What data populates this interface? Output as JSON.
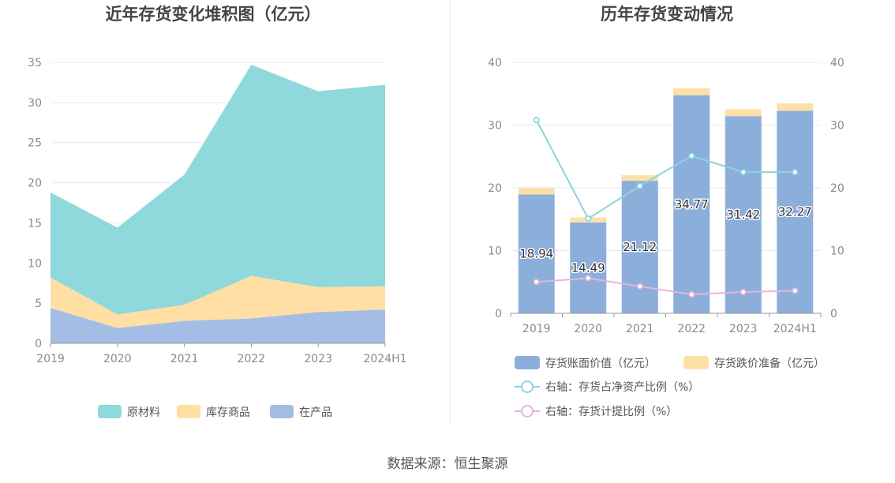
{
  "source_label": "数据来源：恒生聚源",
  "colors": {
    "raw": "#8fd8db",
    "finished": "#ffdfa3",
    "wip": "#a4bde4",
    "book": "#8caedb",
    "writedown": "#fde0a6",
    "line_ratio": "#8dd3dc",
    "line_provision": "#e3b6da",
    "grid": "#e6e9f0",
    "axis": "#999999",
    "divider": "#e8e8e8"
  },
  "chart_data": [
    {
      "type": "area",
      "stacked": true,
      "title": "近年存货变化堆积图（亿元）",
      "categories": [
        "2019",
        "2020",
        "2021",
        "2022",
        "2023",
        "2024H1"
      ],
      "ylim": [
        0,
        35
      ],
      "yticks": [
        0,
        5,
        10,
        15,
        20,
        25,
        30,
        35
      ],
      "grid": true,
      "legend_position": "bottom",
      "series": [
        {
          "name": "在产品",
          "key": "wip",
          "values": [
            4.4,
            1.9,
            2.8,
            3.1,
            3.9,
            4.2
          ]
        },
        {
          "name": "库存商品",
          "key": "finished",
          "values": [
            3.8,
            1.7,
            2.0,
            5.3,
            3.1,
            2.9
          ]
        },
        {
          "name": "原材料",
          "key": "raw",
          "values": [
            10.6,
            10.8,
            16.2,
            26.3,
            24.4,
            25.1
          ]
        }
      ],
      "legend_order": [
        "原材料",
        "库存商品",
        "在产品"
      ]
    },
    {
      "type": "bar",
      "stacked": true,
      "title": "历年存货变动情况",
      "categories": [
        "2019",
        "2020",
        "2021",
        "2022",
        "2023",
        "2024H1"
      ],
      "ylim": [
        0,
        40
      ],
      "yticks": [
        0,
        10,
        20,
        30,
        40
      ],
      "y2lim": [
        0,
        40
      ],
      "y2ticks": [
        0,
        10,
        20,
        30,
        40
      ],
      "grid": true,
      "legend_position": "bottom",
      "series": [
        {
          "name": "存货账面价值（亿元）",
          "key": "book",
          "kind": "bar",
          "values": [
            18.94,
            14.49,
            21.12,
            34.77,
            31.42,
            32.27
          ],
          "labels": [
            "18.94",
            "14.49",
            "21.12",
            "34.77",
            "31.42",
            "32.27"
          ]
        },
        {
          "name": "存货跌价准备（亿元）",
          "key": "writedown",
          "kind": "bar",
          "values": [
            1.0,
            0.8,
            0.9,
            1.1,
            1.1,
            1.2
          ]
        },
        {
          "name": "右轴：存货占净资产比例（%）",
          "key": "line_ratio",
          "kind": "line",
          "axis": "right",
          "values": [
            30.8,
            15.1,
            20.3,
            25.1,
            22.5,
            22.5
          ]
        },
        {
          "name": "右轴：存货计提比例（%）",
          "key": "line_provision",
          "kind": "line",
          "axis": "right",
          "values": [
            5.0,
            5.6,
            4.3,
            3.0,
            3.4,
            3.6
          ]
        }
      ]
    }
  ]
}
